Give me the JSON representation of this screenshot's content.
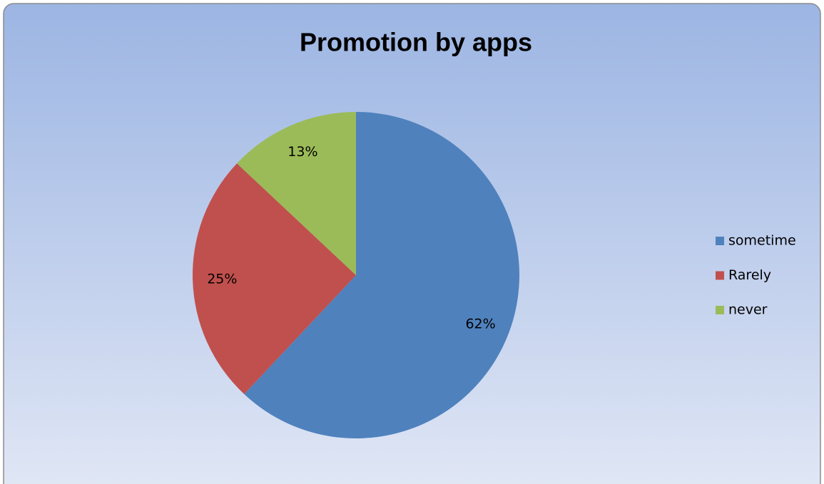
{
  "chart_data": {
    "type": "pie",
    "title": "Promotion by apps",
    "categories": [
      "sometime",
      "Rarely",
      "never"
    ],
    "values": [
      62,
      25,
      13
    ],
    "value_labels": [
      "62%",
      "25%",
      "13%"
    ],
    "colors": [
      "#4f81bd",
      "#c0504d",
      "#9bbb59"
    ],
    "legend": "right"
  }
}
